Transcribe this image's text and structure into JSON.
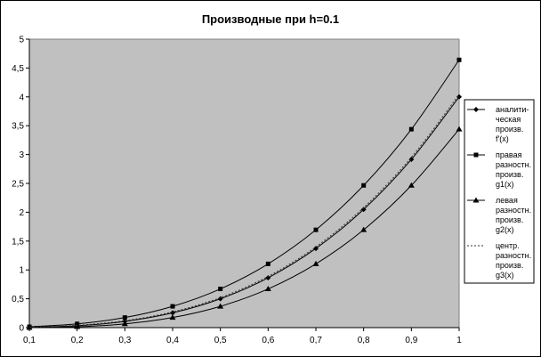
{
  "chart_data": {
    "type": "line",
    "title": "Производные при h=0.1",
    "x": [
      0.1,
      0.2,
      0.3,
      0.4,
      0.5,
      0.6,
      0.7,
      0.8,
      0.9,
      1.0
    ],
    "x_tick_labels": [
      "0,1",
      "0,2",
      "0,3",
      "0,4",
      "0,5",
      "0,6",
      "0,7",
      "0,8",
      "0,9",
      "1"
    ],
    "y_tick_labels": [
      "0",
      "0,5",
      "1",
      "1,5",
      "2",
      "2,5",
      "3",
      "3,5",
      "4",
      "4,5",
      "5"
    ],
    "ylim": [
      0,
      5
    ],
    "xlim": [
      0.1,
      1.0
    ],
    "grid": false,
    "legend_position": "right",
    "plot_background": "#c0c0c0",
    "series": [
      {
        "name_lines": [
          "аналити-",
          "ческая",
          "произв.",
          "f'(x)"
        ],
        "marker": "diamond",
        "dashed": false,
        "values": [
          0.004,
          0.032,
          0.108,
          0.256,
          0.5,
          0.864,
          1.372,
          2.048,
          2.916,
          4.0
        ]
      },
      {
        "name_lines": [
          "правая",
          "разностн.",
          "произв.",
          "g1(x)"
        ],
        "marker": "square",
        "dashed": false,
        "values": [
          0.015,
          0.065,
          0.175,
          0.369,
          0.671,
          1.105,
          1.695,
          2.465,
          3.439,
          4.641
        ]
      },
      {
        "name_lines": [
          "левая",
          "разностн.",
          "произв.",
          "g2(x)"
        ],
        "marker": "triangle",
        "dashed": false,
        "values": [
          0.0,
          0.015,
          0.065,
          0.175,
          0.369,
          0.671,
          1.105,
          1.695,
          2.465,
          3.439
        ]
      },
      {
        "name_lines": [
          "центр.",
          "разностн.",
          "произв.",
          "g3(x)"
        ],
        "marker": "none",
        "dashed": true,
        "values": [
          0.008,
          0.04,
          0.12,
          0.272,
          0.52,
          0.888,
          1.4,
          2.08,
          2.952,
          4.04
        ]
      }
    ]
  }
}
